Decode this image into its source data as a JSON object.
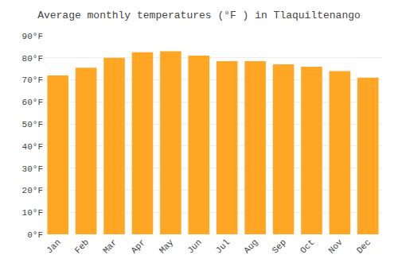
{
  "chart_data": {
    "type": "bar",
    "title": "Average monthly temperatures (°F ) in Tlaquiltenango",
    "categories": [
      "Jan",
      "Feb",
      "Mar",
      "Apr",
      "May",
      "Jun",
      "Jul",
      "Aug",
      "Sep",
      "Oct",
      "Nov",
      "Dec"
    ],
    "values": [
      72,
      75.5,
      80,
      82.5,
      83,
      81,
      78.5,
      78.5,
      77,
      76,
      74,
      71
    ],
    "color": "#FFA724",
    "ylim": [
      0,
      90
    ],
    "yticks": [
      {
        "value": 0,
        "label": "0°F"
      },
      {
        "value": 10,
        "label": "10°F"
      },
      {
        "value": 20,
        "label": "20°F"
      },
      {
        "value": 30,
        "label": "30°F"
      },
      {
        "value": 40,
        "label": "40°F"
      },
      {
        "value": 50,
        "label": "50°F"
      },
      {
        "value": 60,
        "label": "60°F"
      },
      {
        "value": 70,
        "label": "70°F"
      },
      {
        "value": 80,
        "label": "80°F"
      },
      {
        "value": 90,
        "label": "90°F"
      }
    ],
    "grid": true
  }
}
